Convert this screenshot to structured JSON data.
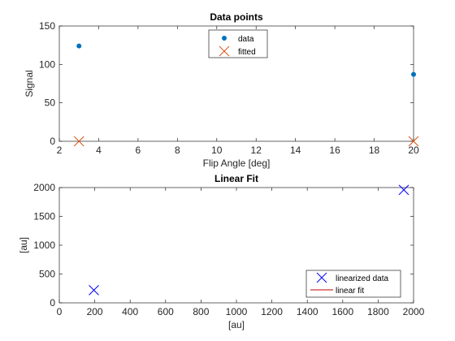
{
  "chart_data": [
    {
      "type": "scatter",
      "title": "Data points",
      "xlabel": "Flip Angle [deg]",
      "ylabel": "Signal",
      "xlim": [
        2,
        20
      ],
      "ylim": [
        0,
        150
      ],
      "xticks": [
        2,
        4,
        6,
        8,
        10,
        12,
        14,
        16,
        18,
        20
      ],
      "yticks": [
        0,
        50,
        100,
        150
      ],
      "legend_position": "top-center",
      "series": [
        {
          "name": "data",
          "marker": "dot",
          "color": "#0072BD",
          "x": [
            3,
            20
          ],
          "y": [
            124,
            87
          ]
        },
        {
          "name": "fitted",
          "marker": "x",
          "color": "#D95319",
          "x": [
            3,
            20
          ],
          "y": [
            0,
            0
          ]
        }
      ]
    },
    {
      "type": "scatter",
      "title": "Linear Fit",
      "xlabel": "[au]",
      "ylabel": "[au]",
      "xlim": [
        0,
        2000
      ],
      "ylim": [
        0,
        2000
      ],
      "xticks": [
        0,
        200,
        400,
        600,
        800,
        1000,
        1200,
        1400,
        1600,
        1800,
        2000
      ],
      "yticks": [
        0,
        500,
        1000,
        1500,
        2000
      ],
      "legend_position": "bottom-right",
      "series": [
        {
          "name": "linearized data",
          "marker": "x",
          "color": "#0000FF",
          "x": [
            195,
            1945
          ],
          "y": [
            220,
            1960
          ]
        },
        {
          "name": "linear fit",
          "marker": "line",
          "color": "#C00000",
          "x": [],
          "y": []
        }
      ]
    }
  ]
}
